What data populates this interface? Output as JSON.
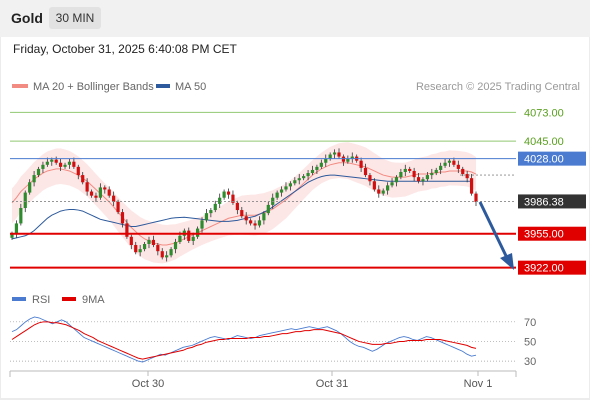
{
  "header": {
    "instrument": "Gold",
    "timeframe": "30 MIN"
  },
  "datetime": "Friday, October 31, 2025 6:40:08 PM CET",
  "legend": {
    "items": [
      {
        "label": "MA 20 + Bollinger Bands",
        "color": "#f28b82"
      },
      {
        "label": "MA 50",
        "color": "#2d5a9c"
      }
    ],
    "credit": "Research © 2025 Trading Central"
  },
  "rsi_legend": {
    "items": [
      {
        "label": "RSI",
        "color": "#4a7bd0"
      },
      {
        "label": "9MA",
        "color": "#e00000"
      }
    ]
  },
  "chart_data": [
    {
      "type": "candlestick",
      "title": "",
      "x_ticks": [
        "Oct 30",
        "Oct 31",
        "Nov 1"
      ],
      "ylim": [
        3910,
        4085
      ],
      "levels": [
        {
          "value": 4073.0,
          "label": "4073.00",
          "kind": "resistance",
          "color": "#90c870",
          "text_color": "#5aa020"
        },
        {
          "value": 4045.0,
          "label": "4045.00",
          "kind": "resistance",
          "color": "#90c870",
          "text_color": "#5aa020"
        },
        {
          "value": 4028.0,
          "label": "4028.00",
          "kind": "pivot",
          "color": "#4a7bd0",
          "text_color": "#ffffff"
        },
        {
          "value": 3986.38,
          "label": "3986.38",
          "kind": "last",
          "color": "#333333",
          "text_color": "#ffffff"
        },
        {
          "value": 3955.0,
          "label": "3955.00",
          "kind": "support",
          "color": "#e00000",
          "text_color": "#ffffff"
        },
        {
          "value": 3922.0,
          "label": "3922.00",
          "kind": "support",
          "color": "#e00000",
          "text_color": "#ffffff"
        }
      ],
      "close_series": [
        3955,
        3965,
        3980,
        3995,
        4005,
        4012,
        4018,
        4022,
        4025,
        4027,
        4024,
        4020,
        4022,
        4025,
        4020,
        4012,
        4005,
        3996,
        3992,
        3990,
        4000,
        3998,
        3992,
        3986,
        3976,
        3965,
        3952,
        3944,
        3937,
        3940,
        3945,
        3949,
        3944,
        3938,
        3932,
        3934,
        3940,
        3947,
        3953,
        3958,
        3948,
        3952,
        3960,
        3968,
        3975,
        3978,
        3984,
        3990,
        3996,
        3993,
        3985,
        3978,
        3972,
        3968,
        3965,
        3963,
        3968,
        3975,
        3983,
        3990,
        3995,
        3998,
        4001,
        4004,
        4007,
        4009,
        4011,
        4014,
        4017,
        4020,
        4024,
        4028,
        4032,
        4034,
        4030,
        4025,
        4028,
        4030,
        4026,
        4019,
        4012,
        4006,
        3998,
        3994,
        3997,
        4002,
        4005,
        4010,
        4015,
        4018,
        4016,
        4010,
        4006,
        4008,
        4012,
        4014,
        4017,
        4021,
        4024,
        4026,
        4022,
        4018,
        4013,
        4009,
        3994,
        3986
      ],
      "ma50_series": [
        3950,
        3951,
        3952,
        3953,
        3955,
        3958,
        3962,
        3966,
        3970,
        3973,
        3975,
        3977,
        3978,
        3978.5,
        3978.5,
        3978,
        3977,
        3975,
        3973,
        3971,
        3969,
        3968,
        3967,
        3966,
        3965,
        3964,
        3963,
        3962,
        3962,
        3963,
        3964,
        3965,
        3966,
        3967,
        3968,
        3969,
        3970,
        3970.5,
        3970.8,
        3971,
        3970.5,
        3970,
        3969.5,
        3969,
        3968.5,
        3968,
        3967.5,
        3967,
        3967,
        3967,
        3967.5,
        3968,
        3969,
        3970,
        3971,
        3972,
        3974,
        3976,
        3978,
        3981,
        3984,
        3987,
        3990,
        3993,
        3996,
        3999,
        4002,
        4005,
        4007,
        4009,
        4010.5,
        4011.5,
        4012,
        4012,
        4011.5,
        4011,
        4010.5,
        4010,
        4009.5,
        4009,
        4008.5,
        4008,
        4007.5,
        4007,
        4006.5,
        4006,
        4006,
        4006,
        4006,
        4006,
        4006,
        4006,
        4006,
        4006,
        4006,
        4006,
        4006,
        4006,
        4006,
        4006,
        4006,
        4006,
        4006,
        4006,
        4006
      ],
      "ma20_series": [
        3985,
        3990,
        3996,
        4000,
        4004,
        4008,
        4011,
        4014,
        4016,
        4017,
        4018,
        4018,
        4017,
        4016,
        4014,
        4012,
        4009,
        4006,
        4002,
        3998,
        3994,
        3990,
        3986,
        3981,
        3976,
        3971,
        3966,
        3961,
        3957,
        3953,
        3950,
        3948,
        3946,
        3945,
        3944,
        3944,
        3945,
        3946,
        3948,
        3950,
        3952,
        3954,
        3956,
        3958,
        3960,
        3962,
        3964,
        3966,
        3968,
        3970,
        3971,
        3972,
        3973,
        3973,
        3973,
        3973,
        3974,
        3975,
        3977,
        3979,
        3982,
        3985,
        3988,
        3992,
        3996,
        4000,
        4004,
        4008,
        4012,
        4015,
        4018,
        4020,
        4022,
        4023,
        4024,
        4024,
        4024,
        4023,
        4022,
        4021,
        4020,
        4018,
        4016,
        4014,
        4012,
        4011,
        4010,
        4010,
        4010,
        4010,
        4011,
        4012,
        4013,
        4013,
        4013,
        4014,
        4014,
        4015,
        4015,
        4016,
        4016,
        4016,
        4016,
        4016,
        4015,
        4013
      ],
      "bollinger_width": 14
    },
    {
      "type": "line",
      "title": "RSI",
      "ylim": [
        25,
        80
      ],
      "y_ticks": [
        70,
        50,
        30
      ],
      "rsi_series": [
        60,
        62,
        66,
        70,
        73,
        75,
        74,
        72,
        70,
        68,
        70,
        72,
        70,
        66,
        62,
        58,
        54,
        52,
        50,
        48,
        46,
        44,
        42,
        40,
        38,
        36,
        34,
        32,
        30,
        29,
        31,
        33,
        35,
        37,
        36,
        38,
        40,
        42,
        44,
        45,
        46,
        48,
        50,
        52,
        54,
        55,
        54,
        53,
        52,
        54,
        56,
        55,
        54,
        53,
        54,
        56,
        57,
        58,
        59,
        60,
        61,
        62,
        63,
        62,
        63,
        64,
        65,
        64,
        63,
        64,
        65,
        63,
        61,
        58,
        54,
        50,
        47,
        45,
        44,
        42,
        40,
        42,
        45,
        48,
        50,
        52,
        54,
        55,
        54,
        52,
        51,
        53,
        55,
        54,
        52,
        50,
        48,
        46,
        44,
        42,
        40,
        37,
        35,
        36
      ],
      "ma9_series": [
        52,
        55,
        58,
        61,
        64,
        67,
        69,
        70,
        70,
        69,
        69,
        68,
        67,
        65,
        63,
        61,
        58,
        56,
        54,
        51,
        49,
        47,
        45,
        43,
        41,
        39,
        37,
        35,
        33,
        32,
        33,
        34,
        35,
        36,
        37,
        38,
        39,
        40,
        41,
        43,
        44,
        46,
        47,
        49,
        50,
        51,
        52,
        52,
        53,
        53,
        53,
        53,
        53,
        54,
        54,
        54,
        55,
        55,
        56,
        57,
        58,
        58,
        59,
        60,
        60,
        61,
        61,
        62,
        62,
        62,
        61,
        60,
        59,
        58,
        56,
        54,
        52,
        50,
        49,
        48,
        47,
        47,
        47,
        48,
        48,
        49,
        50,
        50,
        51,
        51,
        51,
        51,
        52,
        52,
        52,
        52,
        51,
        50,
        49,
        48,
        47,
        46,
        44,
        43
      ]
    }
  ]
}
